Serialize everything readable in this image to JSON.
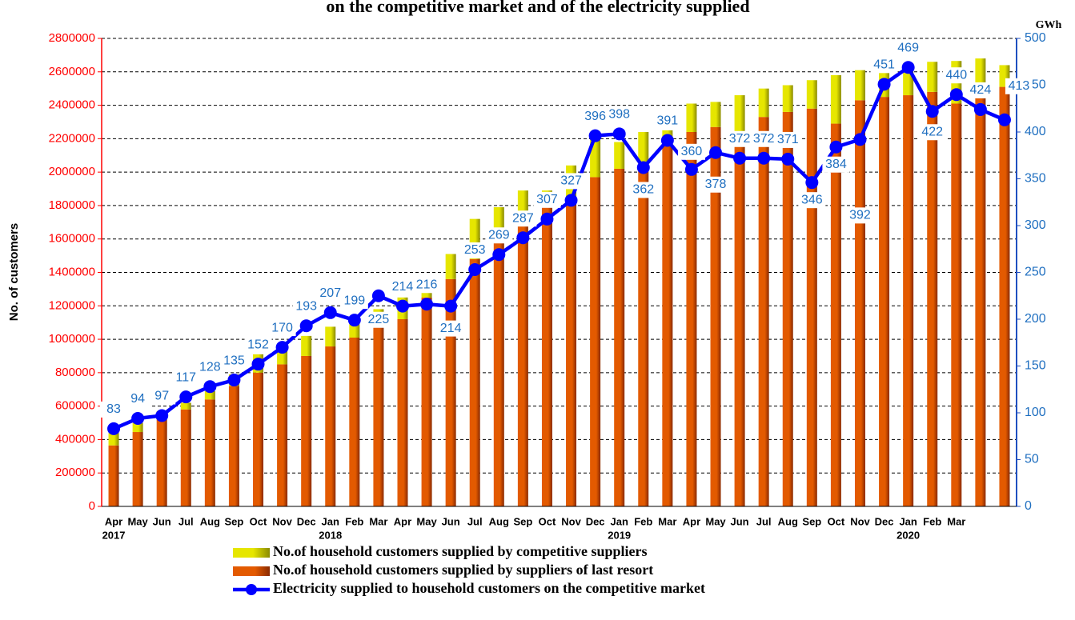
{
  "chart_data": {
    "type": "combo",
    "title": "on the competitive market and of the electricity supplied",
    "y_label": "No. of customers",
    "y2_label": "GWh",
    "categories": [
      "Apr",
      "May",
      "Jun",
      "Jul",
      "Aug",
      "Sep",
      "Oct",
      "Nov",
      "Dec",
      "Jan",
      "Feb",
      "Mar",
      "Apr",
      "May",
      "Jun",
      "Jul",
      "Aug",
      "Sep",
      "Oct",
      "Nov",
      "Dec",
      "Jan",
      "Feb",
      "Mar",
      "Apr",
      "May",
      "Jun",
      "Jul",
      "Aug",
      "Sep",
      "Oct",
      "Nov",
      "Dec",
      "Jan",
      "Feb",
      "Mar",
      null,
      null
    ],
    "category_years": [
      "2017",
      null,
      null,
      null,
      null,
      null,
      null,
      null,
      null,
      "2018",
      null,
      null,
      null,
      null,
      null,
      null,
      null,
      null,
      null,
      null,
      null,
      "2019",
      null,
      null,
      null,
      null,
      null,
      null,
      null,
      null,
      null,
      null,
      null,
      "2020",
      null,
      null,
      null,
      null
    ],
    "ylim": [
      0,
      2800000
    ],
    "yticks": [
      0,
      200000,
      400000,
      600000,
      800000,
      1000000,
      1200000,
      1400000,
      1600000,
      1800000,
      2000000,
      2200000,
      2400000,
      2600000,
      2800000
    ],
    "y2lim": [
      0,
      500
    ],
    "y2ticks": [
      0,
      50,
      100,
      150,
      200,
      250,
      300,
      350,
      400,
      450,
      500
    ],
    "grid": true,
    "series": [
      {
        "name": "No.of household customers supplied by suppliers of last resort",
        "type": "bar",
        "color": "#e35a00",
        "values": [
          365000,
          445000,
          520000,
          580000,
          640000,
          720000,
          800000,
          850000,
          900000,
          957000,
          1010000,
          1090000,
          1120000,
          1250000,
          1360000,
          1480000,
          1600000,
          1730000,
          1800000,
          1830000,
          1970000,
          2020000,
          2060000,
          2200000,
          2240000,
          2270000,
          2200000,
          2330000,
          2360000,
          2380000,
          2290000,
          2430000,
          2450000,
          2460000,
          2480000,
          2410000,
          2500000,
          2510000
        ]
      },
      {
        "name": "No.of household customers supplied by competitive suppliers",
        "type": "bar",
        "color": "#e6e600",
        "values": [
          75000,
          55000,
          50000,
          40000,
          50000,
          70000,
          110000,
          100000,
          120000,
          118000,
          80000,
          90000,
          130000,
          90000,
          150000,
          240000,
          190000,
          160000,
          90000,
          210000,
          240000,
          160000,
          180000,
          50000,
          170000,
          150000,
          260000,
          170000,
          160000,
          170000,
          290000,
          180000,
          180000,
          190000,
          180000,
          255000,
          180000,
          130000
        ]
      },
      {
        "name": "Electricity supplied to household customers on the competitive market",
        "type": "line",
        "axis": "y2",
        "color": "#0000ff",
        "values": [
          83,
          94,
          97,
          117,
          128,
          135,
          152,
          170,
          193,
          207,
          199,
          225,
          214,
          216,
          214,
          253,
          269,
          287,
          307,
          327,
          396,
          398,
          362,
          391,
          360,
          378,
          372,
          372,
          371,
          346,
          384,
          392,
          451,
          469,
          422,
          440,
          424,
          413
        ]
      }
    ]
  }
}
